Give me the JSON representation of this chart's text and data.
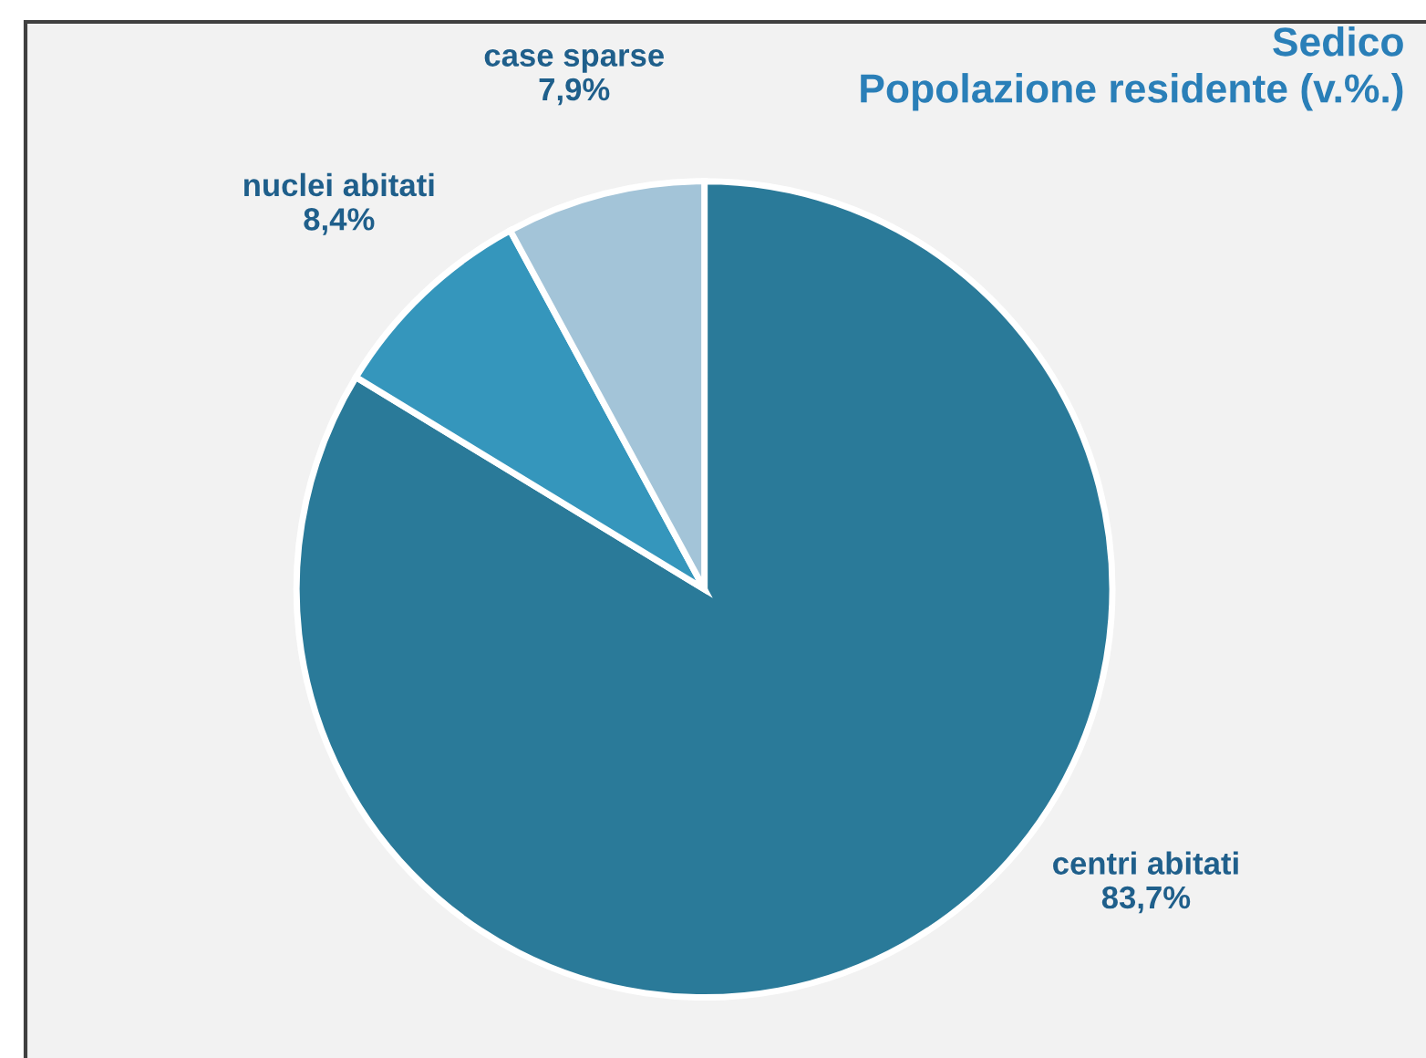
{
  "chart_data": {
    "type": "pie",
    "title": "Sedico",
    "subtitle": "Popolazione residente (v.%.)",
    "categories": [
      "centri abitati",
      "nuclei abitati",
      "case sparse"
    ],
    "values": [
      83.7,
      8.4,
      7.9
    ],
    "value_labels": [
      "83,7%",
      "8,4%",
      "7,9%"
    ],
    "colors": [
      "#2a7a99",
      "#3596bc",
      "#a3c4d8"
    ],
    "legend": false
  }
}
